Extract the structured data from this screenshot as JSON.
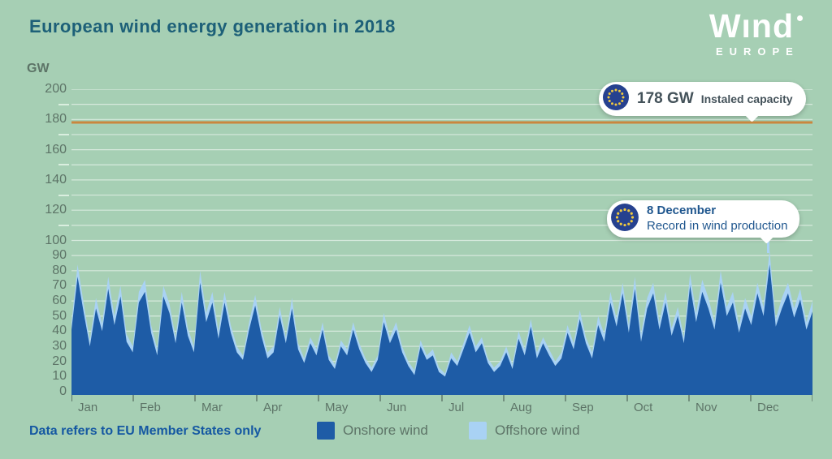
{
  "header": {
    "title": "European wind energy generation in 2018",
    "logo": {
      "word": "Wınd",
      "sub": "EUROPE"
    }
  },
  "annotations": {
    "capacity": {
      "value": "178 GW",
      "label": "Instaled capacity"
    },
    "record": {
      "title": "8 December",
      "label": "Record in wind production"
    }
  },
  "footer": {
    "note": "Data refers to EU Member States only",
    "legend": [
      {
        "label": "Onshore wind",
        "color": "#1e5ca6"
      },
      {
        "label": "Offshore wind",
        "color": "#a9d2f4"
      }
    ]
  },
  "colors": {
    "background": "#a6cfb4",
    "title": "#1d6078",
    "axis_text": "#5d7467",
    "gridline": "rgba(255,255,255,0.55)",
    "onshore": "#1e5ca6",
    "offshore": "#a9d2f4",
    "capacity_line": "#c9873e",
    "note_text": "#1558a2",
    "eu_flag_blue": "#26418f",
    "eu_flag_star": "#f0c93f"
  },
  "chart_data": {
    "type": "area",
    "stacked": true,
    "title": "European wind energy generation in 2018",
    "ylabel": "GW",
    "ylim": [
      0,
      200
    ],
    "grid_step": 10,
    "y_ticks_labeled": [
      0,
      10,
      20,
      30,
      40,
      50,
      60,
      70,
      80,
      90,
      100,
      120,
      140,
      160,
      180,
      200
    ],
    "y_ticks_minor_dash": [
      110,
      130,
      150,
      170,
      190
    ],
    "months": [
      "Jan",
      "Feb",
      "Mar",
      "Apr",
      "May",
      "Jun",
      "Jul",
      "Aug",
      "Sep",
      "Oct",
      "Nov",
      "Dec"
    ],
    "x_range": "1 Jan 2018 – 31 Dec 2018, daily generation (values estimated from graph at ~3-day resolution)",
    "legend_position": "bottom",
    "reference_line": {
      "value": 178,
      "label": "Instaled capacity",
      "color": "#c9873e"
    },
    "record_point": {
      "date": "8 December",
      "total_gw": 93
    },
    "series": [
      {
        "name": "Onshore wind",
        "color": "#1e5ca6",
        "values": [
          41,
          76,
          52,
          30,
          55,
          40,
          68,
          44,
          63,
          33,
          26,
          59,
          66,
          39,
          24,
          63,
          52,
          32,
          59,
          37,
          26,
          72,
          46,
          59,
          35,
          59,
          39,
          26,
          21,
          41,
          57,
          37,
          22,
          26,
          50,
          32,
          55,
          28,
          19,
          32,
          24,
          41,
          21,
          15,
          30,
          24,
          41,
          28,
          19,
          13,
          21,
          46,
          32,
          41,
          26,
          17,
          11,
          30,
          21,
          24,
          13,
          10,
          22,
          17,
          28,
          39,
          26,
          32,
          19,
          13,
          17,
          26,
          15,
          35,
          24,
          43,
          22,
          32,
          24,
          17,
          22,
          39,
          28,
          48,
          32,
          22,
          44,
          33,
          59,
          43,
          65,
          39,
          68,
          33,
          55,
          65,
          41,
          59,
          37,
          50,
          32,
          70,
          46,
          66,
          55,
          41,
          72,
          50,
          59,
          39,
          55,
          44,
          65,
          50,
          84,
          43,
          55,
          65,
          49,
          61,
          41,
          53
        ]
      },
      {
        "name": "Offshore wind",
        "color": "#a9d2f4",
        "values": [
          5,
          8,
          6,
          4,
          7,
          5,
          8,
          6,
          7,
          5,
          4,
          7,
          8,
          5,
          4,
          7,
          6,
          4,
          7,
          5,
          4,
          8,
          6,
          7,
          5,
          7,
          5,
          4,
          3,
          5,
          7,
          5,
          4,
          4,
          6,
          4,
          7,
          4,
          3,
          4,
          4,
          5,
          3,
          3,
          4,
          4,
          5,
          4,
          3,
          3,
          3,
          6,
          4,
          5,
          4,
          3,
          3,
          4,
          3,
          4,
          3,
          2,
          4,
          3,
          4,
          5,
          4,
          4,
          3,
          3,
          3,
          4,
          3,
          5,
          4,
          5,
          4,
          4,
          4,
          3,
          4,
          5,
          4,
          6,
          4,
          4,
          6,
          5,
          7,
          5,
          7,
          5,
          8,
          5,
          7,
          7,
          5,
          7,
          5,
          6,
          4,
          8,
          6,
          8,
          7,
          5,
          8,
          6,
          7,
          5,
          7,
          6,
          7,
          6,
          9,
          5,
          7,
          7,
          6,
          7,
          5,
          7
        ]
      }
    ]
  }
}
